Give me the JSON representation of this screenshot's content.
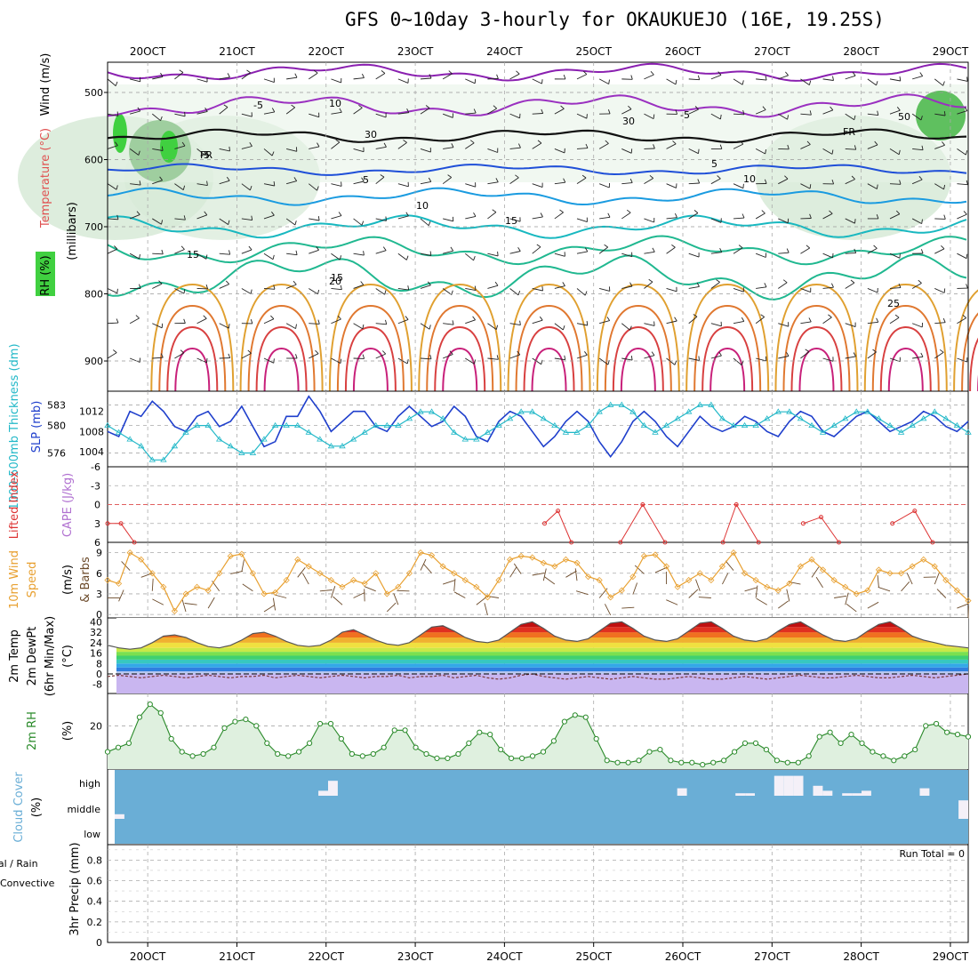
{
  "title": "GFS 0~10day 3-hourly for OKAUKUEJO (16E, 19.25S)",
  "dates": [
    "20OCT",
    "21OCT",
    "22OCT",
    "23OCT",
    "24OCT",
    "25OCT",
    "26OCT",
    "27OCT",
    "28OCT",
    "29OCT"
  ],
  "panels": {
    "upper": {
      "labels": {
        "wind": "Wind (m/s)",
        "temperature": "Temperature (°C)",
        "rh": "RH (%)",
        "pressure": "(millibars)"
      },
      "yticks": [
        "500",
        "600",
        "700",
        "800",
        "900"
      ],
      "contour_labels": [
        "-5",
        "-5",
        "-5",
        "5",
        "5",
        "10",
        "10",
        "15",
        "15",
        "15",
        "20",
        "25",
        "FR",
        "FR",
        "10",
        "30",
        "30",
        "50"
      ]
    },
    "slp": {
      "labels": {
        "thickness": "1000-500mb Thickness (dm)",
        "slp": "SLP (mb)"
      },
      "yticks_left": [
        "583",
        "580",
        "576"
      ],
      "yticks_right": [
        "1012",
        "1008",
        "1004"
      ]
    },
    "cape": {
      "labels": {
        "li": "Lifted Index",
        "cape": "CAPE (J/kg)"
      },
      "yticks": [
        "-6",
        "-3",
        "0",
        "3",
        "6"
      ]
    },
    "wind10": {
      "labels": {
        "wind": "10m Wind",
        "speed": "Speed",
        "unit": "(m/s)",
        "barbs": "& Barbs"
      },
      "yticks": [
        "9",
        "6",
        "3",
        "0"
      ]
    },
    "temp2m": {
      "labels": {
        "temp": "2m Temp",
        "dew": "2m DewPt",
        "minmax": "(6hr Min/Max)",
        "unit": "(°C)"
      },
      "yticks": [
        "40",
        "32",
        "24",
        "16",
        "8",
        "0",
        "-8"
      ]
    },
    "rh2m": {
      "labels": {
        "rh": "2m RH",
        "unit": "(%)"
      },
      "yticks": [
        "20"
      ]
    },
    "cloud": {
      "labels": {
        "cloud": "Cloud Cover",
        "unit": "(%)"
      },
      "levels": [
        "high",
        "middle",
        "low"
      ]
    },
    "precip": {
      "labels": {
        "total": "Total / Rain",
        "conv": "Convective",
        "precip": "3hr Precip (mm)"
      },
      "yticks": [
        "0.8",
        "0.6",
        "0.4",
        "0.2",
        "0"
      ],
      "run_total": "Run Total = 0"
    }
  },
  "colors": {
    "slp": "#1f3fcc",
    "thickness": "#22b8c8",
    "li": "#dd3333",
    "cape": "#b070d0",
    "wind10": "#e8a030",
    "rh2m": "#2a8a2a",
    "rhfill": "#dff0df",
    "cloud": "#6aaed6"
  },
  "chart_data": {
    "type": "line",
    "x_unit": "days from 20OCT 00Z",
    "x_range": [
      -0.45,
      9.2
    ],
    "slp_mb": [
      1008,
      1007,
      1012,
      1011,
      1014,
      1012,
      1009,
      1008,
      1011,
      1012,
      1009,
      1010,
      1013,
      1009,
      1005,
      1006,
      1011,
      1011,
      1015,
      1012,
      1008,
      1010,
      1012,
      1012,
      1009,
      1008,
      1011,
      1013,
      1011,
      1009,
      1010,
      1013,
      1011,
      1007,
      1006,
      1010,
      1012,
      1011,
      1008,
      1005,
      1007,
      1010,
      1012,
      1010,
      1006,
      1003,
      1006,
      1010,
      1012,
      1010,
      1007,
      1005,
      1008,
      1011,
      1009,
      1008,
      1009,
      1011,
      1010,
      1008,
      1007,
      1010,
      1012,
      1011,
      1008,
      1007,
      1009,
      1011,
      1012,
      1010,
      1008,
      1009,
      1010,
      1012,
      1011,
      1009,
      1008,
      1010
    ],
    "thickness_dm": [
      580,
      579,
      578,
      577,
      575,
      575,
      577,
      579,
      580,
      580,
      578,
      577,
      576,
      576,
      578,
      580,
      580,
      580,
      579,
      578,
      577,
      577,
      578,
      579,
      580,
      580,
      580,
      581,
      582,
      582,
      581,
      579,
      578,
      578,
      579,
      580,
      581,
      582,
      582,
      581,
      580,
      579,
      579,
      580,
      582,
      583,
      583,
      582,
      580,
      579,
      580,
      581,
      582,
      583,
      583,
      581,
      580,
      580,
      580,
      581,
      582,
      582,
      581,
      580,
      579,
      580,
      581,
      582,
      582,
      581,
      580,
      579,
      580,
      581,
      582,
      581,
      580,
      579
    ],
    "lifted_index_visible": [
      [
        -0.45,
        3
      ],
      [
        -0.3,
        3
      ],
      [
        -0.15,
        6
      ],
      [
        4.45,
        3
      ],
      [
        4.6,
        1
      ],
      [
        4.75,
        6
      ],
      [
        5.3,
        6
      ],
      [
        5.55,
        0
      ],
      [
        5.8,
        6
      ],
      [
        6.45,
        6
      ],
      [
        6.6,
        0
      ],
      [
        6.85,
        6
      ],
      [
        7.35,
        3
      ],
      [
        7.55,
        2
      ],
      [
        7.75,
        6
      ],
      [
        8.35,
        3
      ],
      [
        8.6,
        1
      ],
      [
        8.8,
        6
      ]
    ],
    "wind10_ms": [
      5,
      4.5,
      9,
      8,
      6,
      4,
      0.5,
      3,
      4,
      3.5,
      6,
      8.5,
      8.8,
      6,
      3,
      3.2,
      5,
      8,
      7,
      6,
      5,
      4,
      5,
      4.5,
      6,
      3,
      4,
      6,
      9,
      8.6,
      7,
      6,
      5,
      4,
      2.5,
      5,
      8,
      8.5,
      8.3,
      7.5,
      7,
      8,
      7.5,
      5.5,
      5,
      2.5,
      3.5,
      5.5,
      8.5,
      8.7,
      7,
      4,
      5,
      6,
      5,
      7,
      9,
      6,
      5,
      4,
      3.5,
      4.5,
      7,
      8,
      6.5,
      5,
      4,
      3,
      3.5,
      6.5,
      6,
      6,
      7,
      8,
      7,
      5,
      3.5,
      2
    ],
    "temp2m_c": [
      22,
      20,
      19,
      20,
      24,
      29,
      30,
      28,
      24,
      21,
      20,
      22,
      26,
      31,
      32,
      29,
      25,
      22,
      21,
      22,
      26,
      32,
      34,
      30,
      26,
      23,
      22,
      24,
      30,
      36,
      37,
      33,
      28,
      25,
      24,
      26,
      32,
      38,
      40,
      35,
      29,
      26,
      25,
      27,
      33,
      39,
      40,
      35,
      29,
      26,
      25,
      27,
      33,
      39,
      40,
      35,
      29,
      26,
      25,
      27,
      33,
      38,
      40,
      35,
      30,
      26,
      25,
      27,
      33,
      38,
      40,
      35,
      29,
      26,
      24,
      22,
      21,
      20
    ],
    "dewpt2m_c": [
      -2,
      -1,
      -2,
      -3,
      -2,
      -1,
      -2,
      -3,
      -2,
      -1,
      -2,
      -3,
      -2,
      -2,
      -1,
      -3,
      -2,
      -1,
      -2,
      -3,
      -2,
      -1,
      -2,
      -3,
      -2,
      -2,
      -1,
      -3,
      -2,
      -2,
      -1,
      -3,
      -2,
      -1,
      -3,
      -4,
      -3,
      -1,
      0,
      -2,
      -3,
      -4,
      -3,
      -2,
      -3,
      -4,
      -3,
      -2,
      -3,
      -4,
      -4,
      -3,
      -2,
      -3,
      -4,
      -4,
      -3,
      -2,
      -3,
      -4,
      -3,
      -2,
      -1,
      -2,
      -3,
      -3,
      -2,
      -1,
      -2,
      -3,
      -3,
      -2,
      -1,
      -2,
      -3,
      -2,
      -1,
      0
    ],
    "rh2m_pct": [
      8,
      10,
      12,
      24,
      30,
      26,
      14,
      8,
      6,
      7,
      10,
      19,
      22,
      23,
      20,
      12,
      7,
      6,
      8,
      12,
      21,
      21,
      14,
      7,
      6,
      7,
      10,
      18,
      18,
      10,
      7,
      5,
      5,
      7,
      12,
      17,
      16,
      9,
      5,
      5,
      6,
      8,
      13,
      22,
      25,
      24,
      14,
      4,
      3,
      3,
      4,
      8,
      9,
      4,
      3,
      3,
      2,
      3,
      4,
      8,
      12,
      12,
      9,
      4,
      3,
      3,
      6,
      15,
      17,
      12,
      16,
      12,
      8,
      6,
      4,
      6,
      9,
      20,
      21,
      17,
      16,
      15
    ],
    "cloud_high_pct": [
      0,
      0,
      0,
      0,
      0,
      0,
      0,
      0,
      0,
      0,
      0,
      0,
      0,
      0,
      0,
      0,
      0,
      0,
      0,
      0,
      0,
      20,
      60,
      0,
      0,
      0,
      0,
      0,
      0,
      0,
      0,
      0,
      0,
      0,
      0,
      0,
      0,
      0,
      0,
      0,
      0,
      0,
      0,
      0,
      0,
      0,
      0,
      0,
      0,
      0,
      0,
      0,
      0,
      0,
      0,
      0,
      0,
      0,
      30,
      0,
      0,
      0,
      0,
      0,
      10,
      10,
      0,
      0,
      80,
      80,
      80,
      0,
      40,
      20,
      0,
      10,
      10,
      20,
      0,
      0,
      0,
      0,
      0,
      30,
      0,
      0,
      0,
      0
    ],
    "cloud_mid_pct": [
      20,
      0,
      0,
      0,
      0,
      0,
      0,
      0,
      0,
      0,
      0,
      0,
      0,
      0,
      0,
      0,
      0,
      0,
      0,
      0,
      0,
      0,
      0,
      0,
      0,
      0,
      0,
      0,
      0,
      0,
      0,
      0,
      0,
      0,
      0,
      0,
      0,
      0,
      0,
      0,
      0,
      0,
      0,
      0,
      0,
      0,
      0,
      0,
      0,
      0,
      0,
      0,
      0,
      0,
      0,
      0,
      0,
      0,
      0,
      0,
      0,
      0,
      0,
      0,
      0,
      0,
      0,
      0,
      0,
      0,
      0,
      0,
      0,
      0,
      0,
      0,
      0,
      0,
      0,
      0,
      0,
      0,
      0,
      0,
      0,
      0,
      0,
      80
    ],
    "precip_3hr_mm": [],
    "run_total_mm": 0,
    "precip_ylim": [
      0,
      0.95
    ]
  }
}
